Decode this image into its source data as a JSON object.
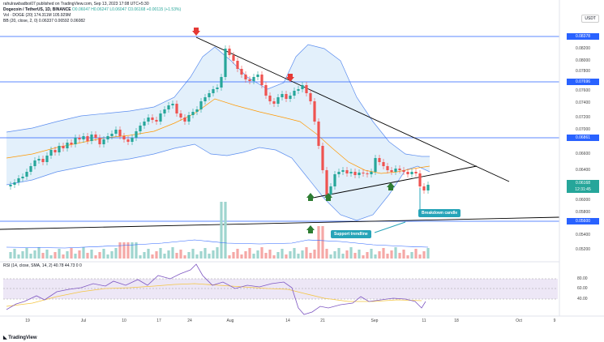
{
  "header": {
    "published": "rahulrawbadboi07 published on TradingView.com, Sep 13, 2023 17:08 UTC+5:30",
    "symbol_line": "Dogecoin / TetherUS, 1D, BINANCE",
    "ohlc": "O0.06047 H0.06247 L0.06047 C0.06168 +0.00115 (+1.53%)",
    "vol_line": "Vol · DOGE (20)  174.311M  105.929M",
    "bb_line": "BB (20, close, 2, 0)  0.06337  0.06592  0.06082"
  },
  "currency_button": "USDT",
  "price_labels": [
    {
      "text": "0.08378",
      "color": "#2962ff",
      "boxed": true
    },
    {
      "text": "0.08200",
      "boxed": false
    },
    {
      "text": "0.08000",
      "boxed": false
    },
    {
      "text": "0.07800",
      "boxed": false
    },
    {
      "text": "0.07696",
      "color": "#2962ff",
      "boxed": true
    },
    {
      "text": "0.07600",
      "boxed": false
    },
    {
      "text": "0.07400",
      "boxed": false
    },
    {
      "text": "0.07200",
      "boxed": false
    },
    {
      "text": "0.07000",
      "boxed": false
    },
    {
      "text": "0.06861",
      "color": "#2962ff",
      "boxed": true
    },
    {
      "text": "0.06600",
      "boxed": false
    },
    {
      "text": "0.06400",
      "boxed": false
    },
    {
      "text": "0.06168",
      "color": "#26a69a",
      "boxed": true
    },
    {
      "text": "12:31:45",
      "color": "#26a69a",
      "boxed": true
    },
    {
      "text": "0.06000",
      "boxed": false
    },
    {
      "text": "0.05800",
      "boxed": false
    },
    {
      "text": "0.05600",
      "color": "#2962ff",
      "boxed": true
    },
    {
      "text": "0.05400",
      "boxed": false
    },
    {
      "text": "0.05200",
      "boxed": false
    }
  ],
  "rsi": {
    "label": "RSI (14, close, SMA, 14, 2)  40.78  44.73  0  0",
    "levels": [
      "80.00",
      "60.00",
      "40.00"
    ]
  },
  "x_axis": [
    "19",
    "Jul",
    "10",
    "17",
    "24",
    "Aug",
    "14",
    "21",
    "Sep",
    "11",
    "18",
    "Oct",
    "9"
  ],
  "annotations": {
    "support_label": "Support trendline",
    "breakdown_label": "Breakdown candle"
  },
  "footer_logo": "TradingView",
  "colors": {
    "up": "#26a69a",
    "down": "#ef5350",
    "band_fill": "#e3f0fb",
    "band_line": "#2962ff",
    "basis": "#ff9800",
    "rsi_line": "#7e57c2",
    "rsi_band": "#ede7f6",
    "callout": "#26a4b8"
  }
}
